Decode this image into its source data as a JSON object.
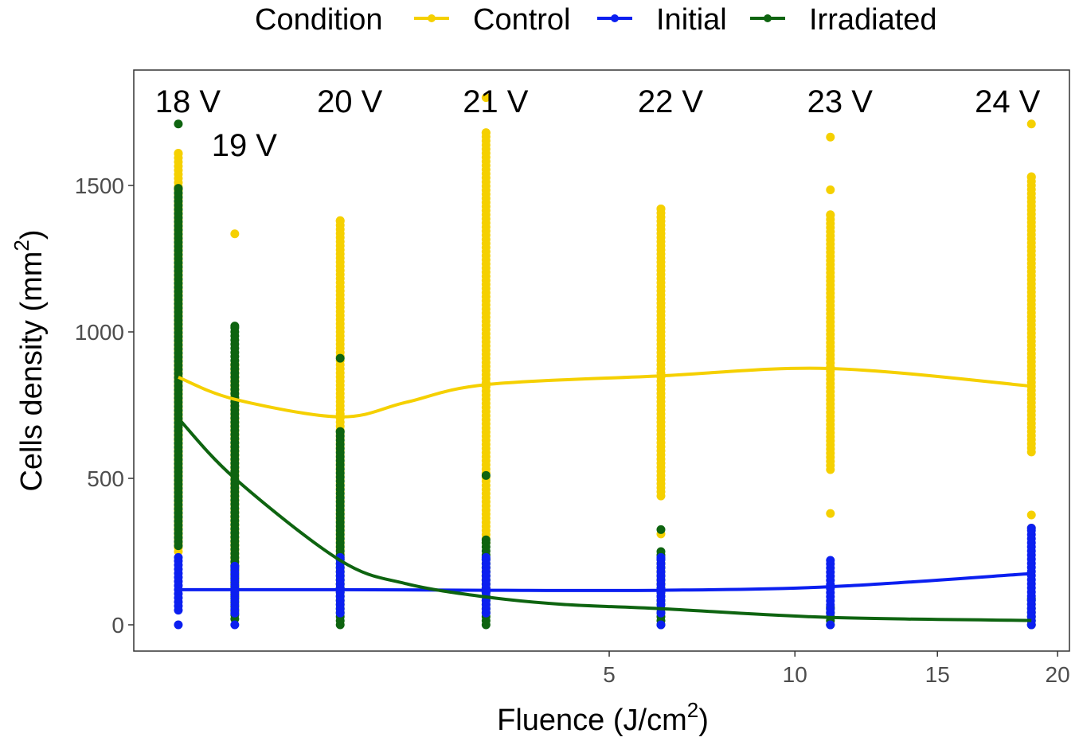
{
  "chart_data": {
    "type": "scatter",
    "title": "",
    "xlabel": "Fluence (J/cm",
    "xlabel_sup": "2",
    "xlabel_end": ")",
    "ylabel": "Cells density (mm",
    "ylabel_sup": "2",
    "ylabel_end": ")",
    "x_scale": "sqrt",
    "xlim": [
      0,
      20.5
    ],
    "ylim": [
      -80,
      1900
    ],
    "x_ticks": [
      5,
      10,
      15,
      20
    ],
    "y_ticks": [
      0,
      500,
      1000,
      1500
    ],
    "grid": false,
    "legend": {
      "title": "Condition",
      "placement": "top",
      "entries": [
        {
          "name": "Control",
          "color": "#F5D000"
        },
        {
          "name": "Initial",
          "color": "#0B1FF0"
        },
        {
          "name": "Irradiated",
          "color": "#0E6410"
        }
      ]
    },
    "voltage_labels": [
      {
        "label": "18 V",
        "fluence": 0.0076
      },
      {
        "label": "19 V",
        "fluence": 0.136
      },
      {
        "label": "20 V",
        "fluence": 0.8
      },
      {
        "label": "21 V",
        "fluence": 2.63
      },
      {
        "label": "22 V",
        "fluence": 6.22
      },
      {
        "label": "23 V",
        "fluence": 11.15
      },
      {
        "label": "24 V",
        "fluence": 18.85
      }
    ],
    "point_groups": [
      {
        "condition": "Control",
        "fluence": 0.0076,
        "min": 250,
        "max": 1610,
        "extra": []
      },
      {
        "condition": "Irradiated",
        "fluence": 0.0076,
        "min": 270,
        "max": 1490,
        "extra": [
          1710
        ]
      },
      {
        "condition": "Initial",
        "fluence": 0.0076,
        "min": 50,
        "max": 230,
        "extra": [
          0
        ]
      },
      {
        "condition": "Control",
        "fluence": 0.136,
        "min": 100,
        "max": 890,
        "extra": [
          1335
        ]
      },
      {
        "condition": "Irradiated",
        "fluence": 0.136,
        "min": 20,
        "max": 1020,
        "extra": []
      },
      {
        "condition": "Initial",
        "fluence": 0.136,
        "min": 40,
        "max": 200,
        "extra": [
          0
        ]
      },
      {
        "condition": "Control",
        "fluence": 0.8,
        "min": 230,
        "max": 1380,
        "extra": []
      },
      {
        "condition": "Irradiated",
        "fluence": 0.8,
        "min": 0,
        "max": 660,
        "extra": [
          910
        ]
      },
      {
        "condition": "Initial",
        "fluence": 0.8,
        "min": 40,
        "max": 230,
        "extra": []
      },
      {
        "condition": "Control",
        "fluence": 2.63,
        "min": 280,
        "max": 1680,
        "extra": [
          1800
        ]
      },
      {
        "condition": "Irradiated",
        "fluence": 2.63,
        "min": 0,
        "max": 290,
        "extra": [
          510
        ]
      },
      {
        "condition": "Initial",
        "fluence": 2.63,
        "min": 40,
        "max": 230,
        "extra": []
      },
      {
        "condition": "Control",
        "fluence": 6.22,
        "min": 440,
        "max": 1420,
        "extra": [
          310
        ]
      },
      {
        "condition": "Irradiated",
        "fluence": 6.22,
        "min": 0,
        "max": 250,
        "extra": [
          325
        ]
      },
      {
        "condition": "Initial",
        "fluence": 6.22,
        "min": 40,
        "max": 230,
        "extra": [
          0
        ]
      },
      {
        "condition": "Control",
        "fluence": 11.15,
        "min": 530,
        "max": 1400,
        "extra": [
          380,
          1485,
          1665
        ]
      },
      {
        "condition": "Irradiated",
        "fluence": 11.15,
        "min": 0,
        "max": 60,
        "extra": []
      },
      {
        "condition": "Initial",
        "fluence": 11.15,
        "min": 40,
        "max": 220,
        "extra": [
          0
        ]
      },
      {
        "condition": "Control",
        "fluence": 18.85,
        "min": 590,
        "max": 1530,
        "extra": [
          330,
          375,
          1710
        ]
      },
      {
        "condition": "Irradiated",
        "fluence": 18.85,
        "min": 0,
        "max": 90,
        "extra": []
      },
      {
        "condition": "Initial",
        "fluence": 18.85,
        "min": 0,
        "max": 330,
        "extra": []
      }
    ],
    "smooth_lines": [
      {
        "condition": "Control",
        "x": [
          0.0076,
          0.136,
          0.8,
          1.5,
          2.63,
          6.22,
          11.15,
          18.85
        ],
        "y": [
          845,
          770,
          710,
          760,
          820,
          850,
          875,
          815
        ]
      },
      {
        "condition": "Initial",
        "x": [
          0.0076,
          0.136,
          0.8,
          2.63,
          6.22,
          11.15,
          18.85
        ],
        "y": [
          120,
          120,
          120,
          118,
          118,
          130,
          175
        ]
      },
      {
        "condition": "Irradiated",
        "x": [
          0.0076,
          0.136,
          0.8,
          1.5,
          2.63,
          4.0,
          6.22,
          11.15,
          18.85
        ],
        "y": [
          705,
          500,
          220,
          140,
          95,
          70,
          55,
          25,
          15
        ]
      }
    ]
  }
}
